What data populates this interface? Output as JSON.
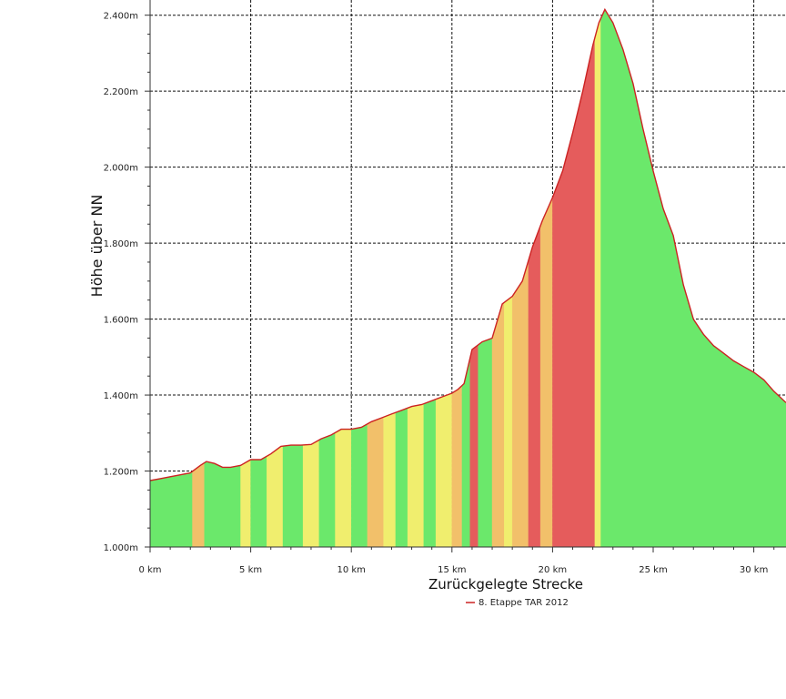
{
  "chart_data": {
    "type": "area",
    "title": "",
    "xlabel": "Zurückgelegte Strecke",
    "ylabel": "Höhe über NN",
    "xlim": [
      0,
      31.6
    ],
    "ylim": [
      1000,
      2440
    ],
    "x_ticks": [
      0,
      5,
      10,
      15,
      20,
      25,
      30
    ],
    "x_tick_labels": [
      "0 km",
      "5 km",
      "10 km",
      "15 km",
      "20 km",
      "25 km",
      "30 km"
    ],
    "y_ticks": [
      1000,
      1200,
      1400,
      1600,
      1800,
      2000,
      2200,
      2400
    ],
    "y_tick_labels": [
      "1.000m",
      "1.200m",
      "1.400m",
      "1.600m",
      "1.800m",
      "2.000m",
      "2.200m",
      "2.400m"
    ],
    "grid": true,
    "legend_position": "bottom-center",
    "series": [
      {
        "name": "8. Etappe TAR 2012",
        "color": "#cc2222",
        "x": [
          0,
          0.5,
          1,
          1.5,
          2,
          2.5,
          2.8,
          3.2,
          3.6,
          4,
          4.5,
          5,
          5.5,
          6,
          6.5,
          7,
          7.5,
          8,
          8.5,
          9,
          9.5,
          10,
          10.5,
          11,
          11.5,
          12,
          12.5,
          13,
          13.5,
          14,
          14.5,
          15,
          15.3,
          15.6,
          16,
          16.5,
          17,
          17.5,
          18,
          18.5,
          19,
          19.5,
          20,
          20.5,
          21,
          21.5,
          22,
          22.3,
          22.6,
          23,
          23.5,
          24,
          24.5,
          25,
          25.5,
          26,
          26.5,
          27,
          27.5,
          28,
          28.5,
          29,
          29.5,
          30,
          30.5,
          31,
          31.6
        ],
        "y": [
          1175,
          1180,
          1185,
          1190,
          1195,
          1215,
          1225,
          1220,
          1210,
          1210,
          1215,
          1230,
          1230,
          1245,
          1265,
          1268,
          1268,
          1270,
          1285,
          1295,
          1310,
          1310,
          1315,
          1330,
          1340,
          1350,
          1360,
          1370,
          1375,
          1385,
          1395,
          1405,
          1415,
          1430,
          1520,
          1540,
          1550,
          1640,
          1660,
          1700,
          1790,
          1860,
          1920,
          1990,
          2090,
          2200,
          2320,
          2380,
          2415,
          2380,
          2310,
          2220,
          2100,
          1990,
          1890,
          1820,
          1690,
          1600,
          1560,
          1530,
          1510,
          1490,
          1475,
          1460,
          1440,
          1410,
          1380
        ]
      }
    ],
    "gradient_colors": {
      "flat": "#6be86b",
      "moderate": "#f0ee6e",
      "medium": "#f2c06a",
      "steep": "#e55c5c"
    },
    "gradient_bands": [
      {
        "x0": 0,
        "x1": 2.1,
        "level": "flat"
      },
      {
        "x0": 2.1,
        "x1": 2.7,
        "level": "medium"
      },
      {
        "x0": 2.7,
        "x1": 4.5,
        "level": "flat"
      },
      {
        "x0": 4.5,
        "x1": 5.0,
        "level": "moderate"
      },
      {
        "x0": 5.0,
        "x1": 5.8,
        "level": "flat"
      },
      {
        "x0": 5.8,
        "x1": 6.6,
        "level": "moderate"
      },
      {
        "x0": 6.6,
        "x1": 7.6,
        "level": "flat"
      },
      {
        "x0": 7.6,
        "x1": 8.4,
        "level": "moderate"
      },
      {
        "x0": 8.4,
        "x1": 9.2,
        "level": "flat"
      },
      {
        "x0": 9.2,
        "x1": 10.0,
        "level": "moderate"
      },
      {
        "x0": 10.0,
        "x1": 10.8,
        "level": "flat"
      },
      {
        "x0": 10.8,
        "x1": 11.6,
        "level": "medium"
      },
      {
        "x0": 11.6,
        "x1": 12.2,
        "level": "moderate"
      },
      {
        "x0": 12.2,
        "x1": 12.8,
        "level": "flat"
      },
      {
        "x0": 12.8,
        "x1": 13.6,
        "level": "moderate"
      },
      {
        "x0": 13.6,
        "x1": 14.2,
        "level": "flat"
      },
      {
        "x0": 14.2,
        "x1": 15.0,
        "level": "moderate"
      },
      {
        "x0": 15.0,
        "x1": 15.5,
        "level": "medium"
      },
      {
        "x0": 15.5,
        "x1": 15.9,
        "level": "flat"
      },
      {
        "x0": 15.9,
        "x1": 16.3,
        "level": "steep"
      },
      {
        "x0": 16.3,
        "x1": 17.0,
        "level": "flat"
      },
      {
        "x0": 17.0,
        "x1": 17.6,
        "level": "medium"
      },
      {
        "x0": 17.6,
        "x1": 18.0,
        "level": "moderate"
      },
      {
        "x0": 18.0,
        "x1": 18.8,
        "level": "medium"
      },
      {
        "x0": 18.8,
        "x1": 19.4,
        "level": "steep"
      },
      {
        "x0": 19.4,
        "x1": 20.0,
        "level": "medium"
      },
      {
        "x0": 20.0,
        "x1": 22.1,
        "level": "steep"
      },
      {
        "x0": 22.1,
        "x1": 22.4,
        "level": "moderate"
      },
      {
        "x0": 22.4,
        "x1": 31.6,
        "level": "flat"
      }
    ]
  }
}
